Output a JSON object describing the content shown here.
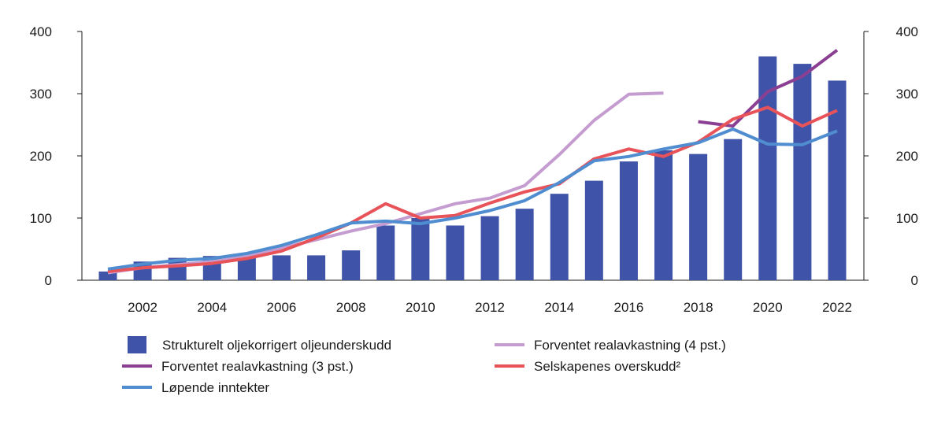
{
  "chart_data": {
    "type": "bar",
    "title": "",
    "xlabel": "",
    "ylabel": "",
    "ylim": [
      0,
      400
    ],
    "y_ticks": [
      0,
      100,
      200,
      300,
      400
    ],
    "y_tick_labels": [
      "0",
      "100",
      "200",
      "300",
      "400"
    ],
    "y_axis_right": true,
    "grid": false,
    "legend_position": "bottom",
    "x": [
      2001,
      2002,
      2003,
      2004,
      2005,
      2006,
      2007,
      2008,
      2009,
      2010,
      2011,
      2012,
      2013,
      2014,
      2015,
      2016,
      2017,
      2018,
      2019,
      2020,
      2021,
      2022
    ],
    "x_tick_labels": [
      "2002",
      "2004",
      "2006",
      "2008",
      "2010",
      "2012",
      "2014",
      "2016",
      "2018",
      "2020",
      "2022"
    ],
    "series": [
      {
        "name": "Strukturelt oljekorrigert oljeunderskudd",
        "kind": "bar",
        "color": "#3f54a8",
        "values": [
          14,
          30,
          36,
          39,
          38,
          40,
          40,
          48,
          88,
          100,
          88,
          103,
          115,
          139,
          160,
          191,
          209,
          203,
          227,
          360,
          348,
          321
        ]
      },
      {
        "name": "Forventet realavkastning (4 pst.)",
        "kind": "line",
        "color": "#c49cd0",
        "values": [
          12,
          20,
          25,
          30,
          38,
          52,
          65,
          79,
          91,
          107,
          123,
          132,
          152,
          202,
          257,
          299,
          301,
          null,
          null,
          null,
          null,
          null
        ]
      },
      {
        "name": "Forventet realavkastning (3 pst.)",
        "kind": "line",
        "color": "#8b3f93",
        "values": [
          null,
          null,
          null,
          null,
          null,
          null,
          null,
          null,
          null,
          null,
          null,
          null,
          null,
          null,
          null,
          null,
          null,
          255,
          248,
          303,
          328,
          370
        ]
      },
      {
        "name": "Selskapenes overskudd²",
        "kind": "line",
        "color": "#e8535a",
        "values": [
          14,
          20,
          23,
          27,
          35,
          47,
          68,
          92,
          123,
          100,
          104,
          124,
          142,
          155,
          195,
          211,
          199,
          222,
          259,
          278,
          248,
          273
        ]
      },
      {
        "name": "Løpende inntekter",
        "kind": "line",
        "color": "#4f8dd0",
        "values": [
          18,
          26,
          32,
          35,
          43,
          56,
          73,
          92,
          95,
          91,
          100,
          112,
          128,
          157,
          192,
          199,
          211,
          221,
          243,
          219,
          218,
          240
        ]
      }
    ]
  }
}
